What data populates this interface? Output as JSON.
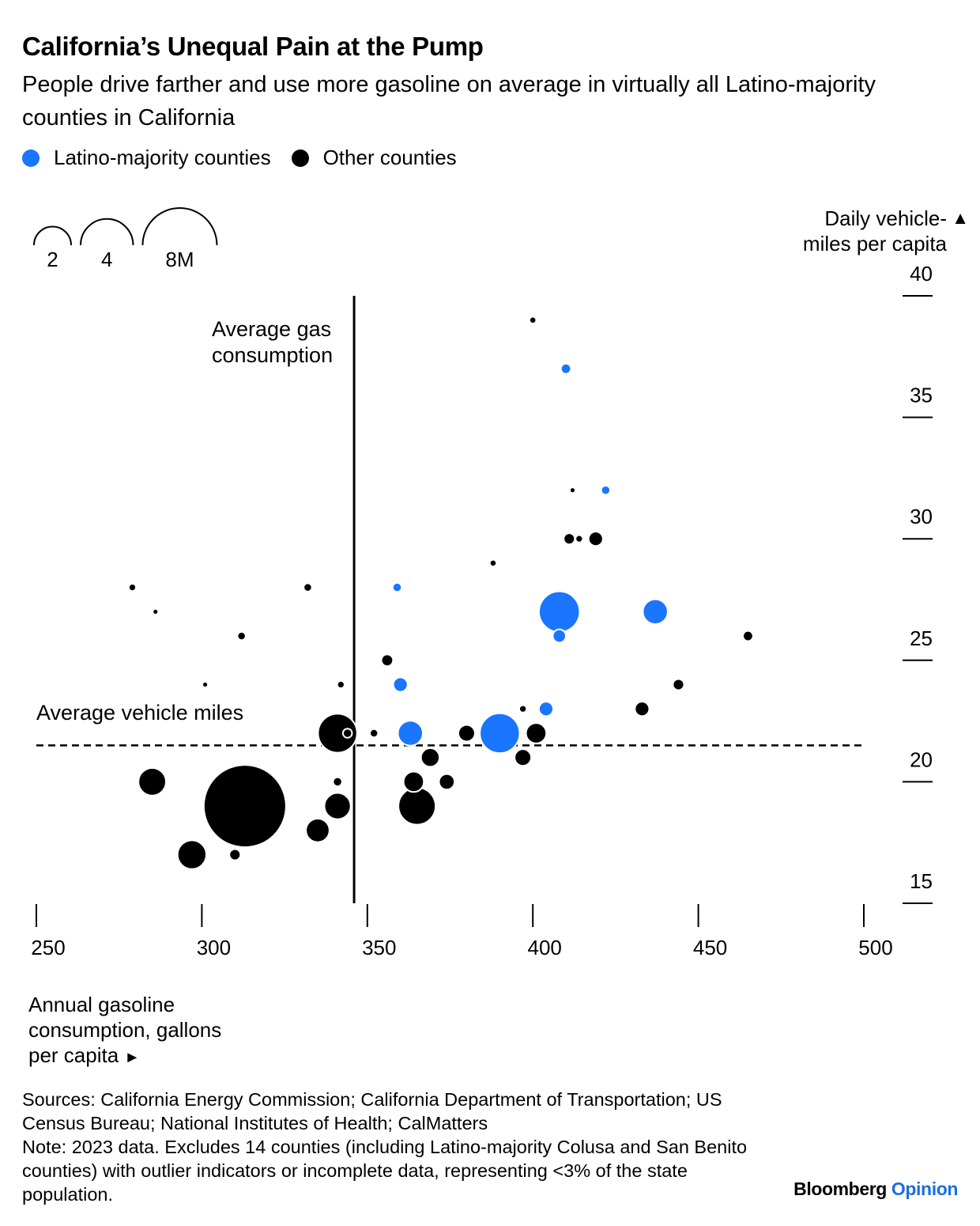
{
  "header": {
    "title": "California’s Unequal Pain at the Pump",
    "subtitle": "People drive farther and use more gasoline on average in virtually all Latino-majority counties in California"
  },
  "legend": [
    {
      "label": "Latino-majority counties",
      "color": "#1a75ff"
    },
    {
      "label": "Other counties",
      "color": "#000000"
    }
  ],
  "size_legend": {
    "labels": [
      "2",
      "4",
      "8M"
    ],
    "values": [
      2,
      4,
      8
    ]
  },
  "axes": {
    "y_label_line1": "Daily vehicle-",
    "y_label_line2": "miles per capita",
    "y_arrow": "▲",
    "x_label_line1": "Annual gasoline",
    "x_label_line2": "consumption, gallons",
    "x_label_line3": "per capita",
    "x_arrow": "►"
  },
  "annotations": {
    "avg_gas_line1": "Average gas",
    "avg_gas_line2": "consumption",
    "avg_miles": "Average vehicle miles"
  },
  "footnotes": {
    "sources": "Sources: California Energy Commission; California Department of Transportation; US Census Bureau; National Institutes of Health; CalMatters",
    "note": "Note: 2023 data. Excludes 14 counties (including Latino-majority Colusa and San Benito counties) with outlier indicators or incomplete data, representing <3% of the state population."
  },
  "brand": {
    "name": "Bloomberg",
    "accent": "Opinion"
  },
  "chart_data": {
    "type": "scatter",
    "xlim": [
      250,
      500
    ],
    "ylim": [
      15,
      40
    ],
    "xticks": [
      250,
      300,
      350,
      400,
      450,
      500
    ],
    "yticks": [
      15,
      20,
      25,
      30,
      35,
      40
    ],
    "avg_x": 346,
    "avg_y": 21.5,
    "size_unit": "population (millions)",
    "series": [
      {
        "name": "Latino-majority counties",
        "color": "#1a75ff",
        "points": [
          {
            "x": 410,
            "y": 37.0,
            "pop": 0.15
          },
          {
            "x": 422,
            "y": 32.0,
            "pop": 0.12
          },
          {
            "x": 359,
            "y": 28.0,
            "pop": 0.12
          },
          {
            "x": 408,
            "y": 27.0,
            "pop": 2.4
          },
          {
            "x": 437,
            "y": 27.0,
            "pop": 0.9
          },
          {
            "x": 408,
            "y": 26.0,
            "pop": 0.25
          },
          {
            "x": 360,
            "y": 24.0,
            "pop": 0.3
          },
          {
            "x": 404,
            "y": 23.0,
            "pop": 0.3
          },
          {
            "x": 363,
            "y": 22.0,
            "pop": 0.9
          },
          {
            "x": 390,
            "y": 22.0,
            "pop": 2.3
          }
        ]
      },
      {
        "name": "Other counties",
        "color": "#000000",
        "points": [
          {
            "x": 400,
            "y": 39.0,
            "pop": 0.05
          },
          {
            "x": 412,
            "y": 32.0,
            "pop": 0.03
          },
          {
            "x": 411,
            "y": 30.0,
            "pop": 0.18
          },
          {
            "x": 414,
            "y": 30.0,
            "pop": 0.06
          },
          {
            "x": 419,
            "y": 30.0,
            "pop": 0.3
          },
          {
            "x": 388,
            "y": 29.0,
            "pop": 0.05
          },
          {
            "x": 279,
            "y": 28.0,
            "pop": 0.06
          },
          {
            "x": 332,
            "y": 28.0,
            "pop": 0.08
          },
          {
            "x": 286,
            "y": 27.0,
            "pop": 0.03
          },
          {
            "x": 312,
            "y": 26.0,
            "pop": 0.1
          },
          {
            "x": 465,
            "y": 26.0,
            "pop": 0.15
          },
          {
            "x": 356,
            "y": 25.0,
            "pop": 0.2
          },
          {
            "x": 301,
            "y": 24.0,
            "pop": 0.03
          },
          {
            "x": 342,
            "y": 24.0,
            "pop": 0.06
          },
          {
            "x": 444,
            "y": 24.0,
            "pop": 0.18
          },
          {
            "x": 397,
            "y": 23.0,
            "pop": 0.06
          },
          {
            "x": 433,
            "y": 23.0,
            "pop": 0.3
          },
          {
            "x": 341,
            "y": 22.0,
            "pop": 2.2
          },
          {
            "x": 344,
            "y": 22.0,
            "pop": 0.12
          },
          {
            "x": 352,
            "y": 22.0,
            "pop": 0.1
          },
          {
            "x": 380,
            "y": 22.0,
            "pop": 0.4
          },
          {
            "x": 401,
            "y": 22.0,
            "pop": 0.6
          },
          {
            "x": 369,
            "y": 21.0,
            "pop": 0.5
          },
          {
            "x": 397,
            "y": 21.0,
            "pop": 0.4
          },
          {
            "x": 285,
            "y": 20.0,
            "pop": 1.1
          },
          {
            "x": 341,
            "y": 20.0,
            "pop": 0.12
          },
          {
            "x": 364,
            "y": 20.0,
            "pop": 0.6
          },
          {
            "x": 374,
            "y": 20.0,
            "pop": 0.35
          },
          {
            "x": 313,
            "y": 19.0,
            "pop": 9.8
          },
          {
            "x": 341,
            "y": 19.0,
            "pop": 1.0
          },
          {
            "x": 365,
            "y": 19.0,
            "pop": 2.0
          },
          {
            "x": 335,
            "y": 18.0,
            "pop": 0.8
          },
          {
            "x": 297,
            "y": 17.0,
            "pop": 1.2
          },
          {
            "x": 310,
            "y": 17.0,
            "pop": 0.18
          }
        ]
      }
    ]
  }
}
